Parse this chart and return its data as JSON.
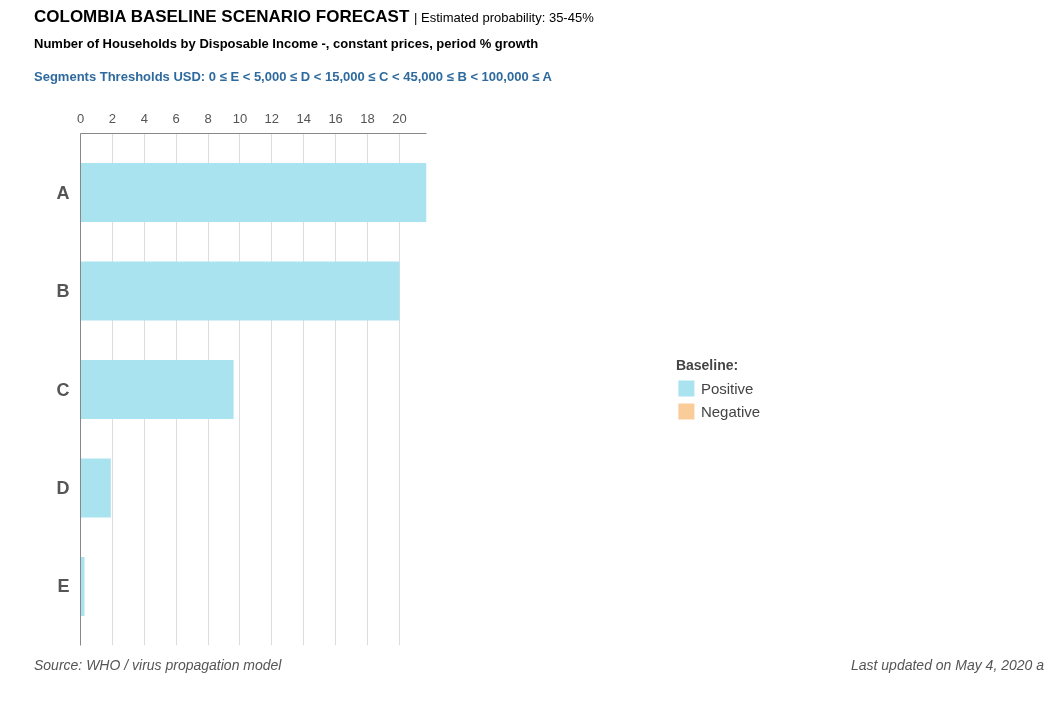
{
  "chart_data": {
    "type": "bar",
    "orientation": "horizontal",
    "title": "COLOMBIA BASELINE SCENARIO FORECAST",
    "subtitle": "Number of Households by Disposable Income -, constant prices, period % growth",
    "categories": [
      "A",
      "B",
      "C",
      "D",
      "E"
    ],
    "series": [
      {
        "name": "Positive",
        "color": "#a9e3f0",
        "values": [
          21.7,
          20,
          9.6,
          1.9,
          0.25
        ]
      },
      {
        "name": "Negative",
        "color": "#f9cc99",
        "values": [
          null,
          null,
          null,
          null,
          null
        ]
      }
    ],
    "xlim": [
      0,
      21.7
    ],
    "xticks": [
      0,
      2,
      4,
      6,
      8,
      10,
      12,
      14,
      16,
      18,
      20
    ],
    "grid": "x",
    "legend": "right",
    "legend_title": "Baseline:",
    "annotations": [
      "| Estimated probability: 35-45%",
      "Segments Thresholds USD: 0 ≤ E < 5,000 ≤ D < 15,000 ≤ C < 45,000 ≤ B < 100,000 ≤ A",
      "Source: WHO / virus propagation model",
      "Last updated on May 4, 2020 a"
    ]
  }
}
